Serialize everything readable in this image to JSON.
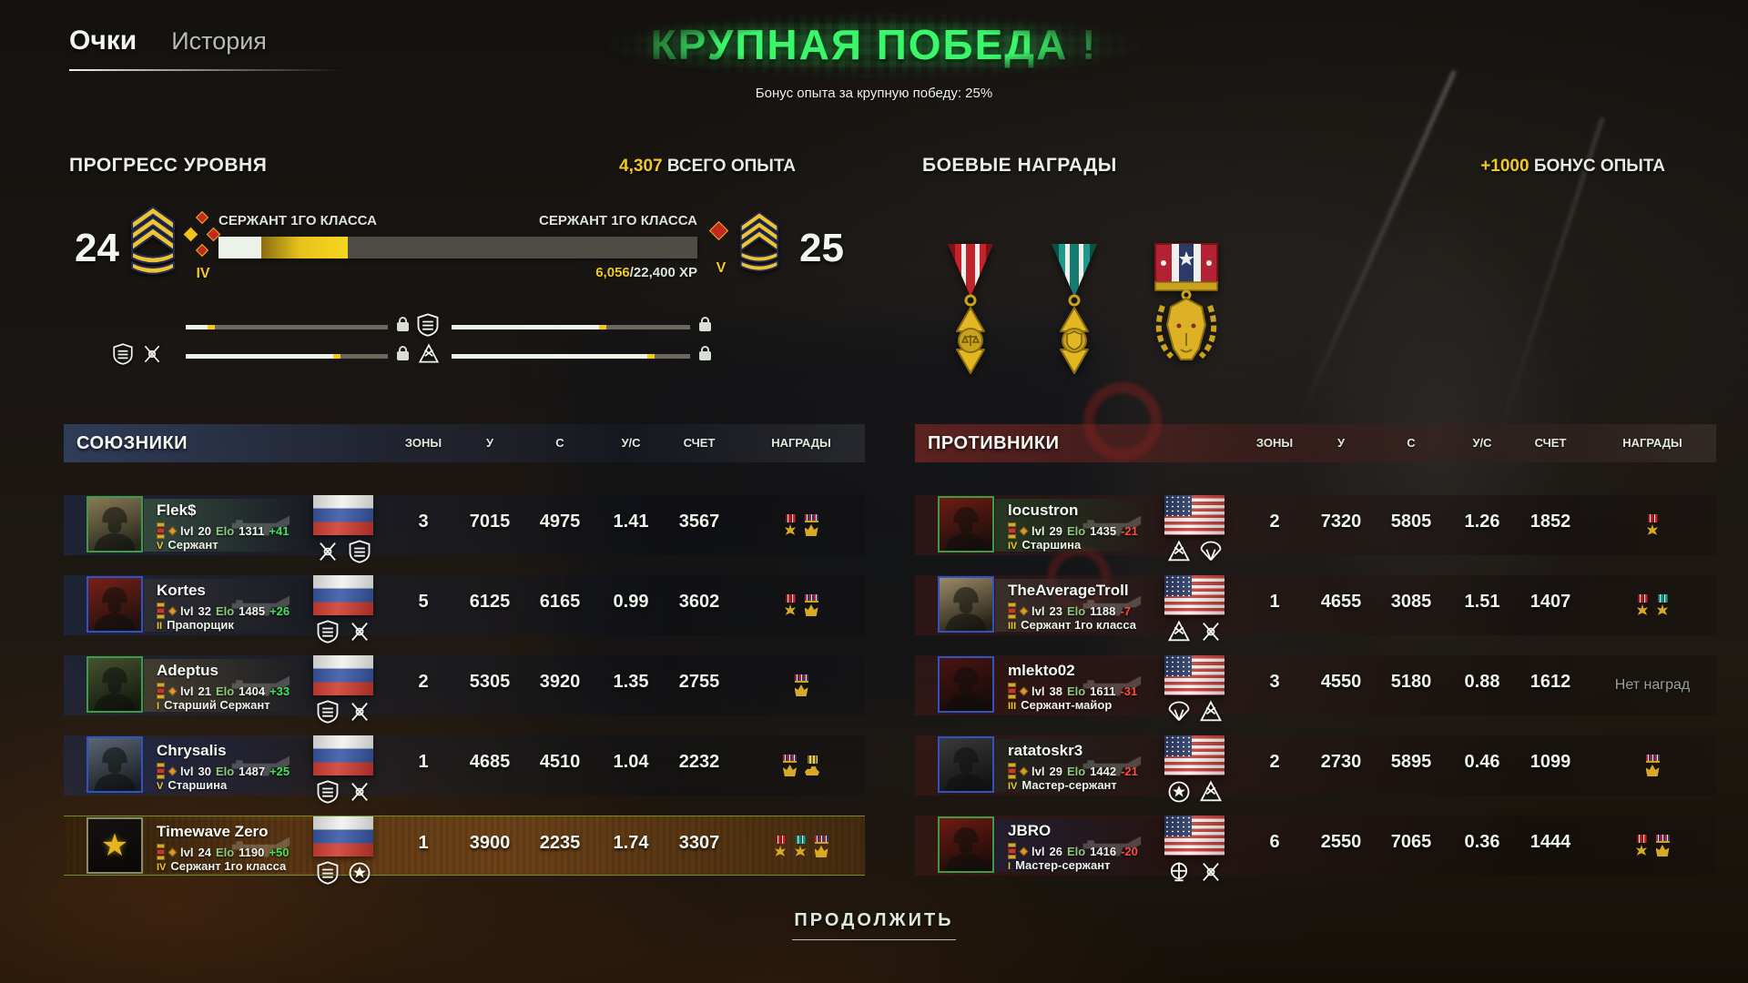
{
  "accent": {
    "green": "#3bf56a",
    "yellow": "#f0c929",
    "positive": "#43e25b",
    "negative": "#ff4a3c"
  },
  "tabs": [
    {
      "label": "Очки",
      "active": true
    },
    {
      "label": "История",
      "active": false
    }
  ],
  "victory": {
    "title": "КРУПНАЯ ПОБЕДА !",
    "subtitle": "Бонус опыта за крупную победу: 25%"
  },
  "labels": {
    "lvl": "lvl",
    "elo": "Elo"
  },
  "level_progress": {
    "section_title": "ПРОГРЕСС УРОВНЯ",
    "total_xp": "4,307",
    "total_xp_label": "ВСЕГО ОПЫТА",
    "current_level": "24",
    "next_level": "25",
    "current_tier": "IV",
    "next_tier": "V",
    "rank_current": "СЕРЖАНТ 1ГО КЛАССА",
    "rank_next": "СЕРЖАНТ 1ГО КЛАССА",
    "xp_current": "6,056",
    "xp_required": "/22,400 XP",
    "bar": {
      "white_pct": 9,
      "yellow_pct": 18
    },
    "weapon_bars": [
      {
        "icon": "flag-russia",
        "fill_pct": 11
      },
      {
        "icon": "vehicle-badge",
        "fill_pct": 62
      },
      {
        "icon": "vehicle-badge tank-badge",
        "fill_pct": 73
      },
      {
        "icon": "tank-badge",
        "fill_pct": 82
      }
    ]
  },
  "battle_rewards": {
    "section_title": "БОЕВЫЕ НАГРАДЫ",
    "bonus": "+1000",
    "bonus_label": "БОНУС ОПЫТА",
    "medals": [
      {
        "name": "scales-star-medal",
        "ribbon": "red"
      },
      {
        "name": "shield-star-medal",
        "ribbon": "teal"
      },
      {
        "name": "dog-wreath-medal",
        "ribbon": "tricolor"
      }
    ]
  },
  "scoreboard": {
    "columns": [
      "ЗОНЫ",
      "У",
      "С",
      "У/С",
      "СЧЕТ",
      "НАГРАДЫ"
    ],
    "no_awards_text": "Нет наград",
    "allies": {
      "title": "СОЮЗНИКИ",
      "players": [
        {
          "name": "Flek$",
          "lvl": "20",
          "elo": "1311",
          "delta": "+41",
          "tier": "V",
          "rank": "Сержант",
          "flag": "ru",
          "zones": "3",
          "kills": "7015",
          "deaths": "4975",
          "kd": "1.41",
          "score": "3567",
          "awards": [
            "red",
            "tricolor"
          ],
          "avatar": {
            "border": "#3f9b43",
            "c1": "#8a7a55",
            "c2": "#26261e"
          },
          "banner": "rgba(74,112,74,0.50)",
          "badges": [
            "b-x",
            "b-shield"
          ]
        },
        {
          "name": "Kortes",
          "lvl": "32",
          "elo": "1485",
          "delta": "+26",
          "tier": "II",
          "rank": "Прапорщик",
          "flag": "ru",
          "zones": "5",
          "kills": "6125",
          "deaths": "6165",
          "kd": "0.99",
          "score": "3602",
          "awards": [
            "red",
            "tricolor"
          ],
          "avatar": {
            "border": "#2f52c4",
            "c1": "#7a1f18",
            "c2": "#1d120e"
          },
          "banner": "rgba(62,58,52,0.50)",
          "badges": [
            "b-shield",
            "b-x"
          ]
        },
        {
          "name": "Adeptus",
          "lvl": "21",
          "elo": "1404",
          "delta": "+33",
          "tier": "I",
          "rank": "Старший Сержант",
          "flag": "ru",
          "zones": "2",
          "kills": "5305",
          "deaths": "3920",
          "kd": "1.35",
          "score": "2755",
          "awards": [
            "tricolor"
          ],
          "avatar": {
            "border": "#3f9b43",
            "c1": "#45522f",
            "c2": "#131a0f"
          },
          "banner": "rgba(118,100,44,0.40)",
          "badges": [
            "b-shield",
            "b-x"
          ]
        },
        {
          "name": "Chrysalis",
          "lvl": "30",
          "elo": "1487",
          "delta": "+25",
          "tier": "V",
          "rank": "Старшина",
          "flag": "ru",
          "zones": "1",
          "kills": "4685",
          "deaths": "4510",
          "kd": "1.04",
          "score": "2232",
          "awards": [
            "tricolor",
            "vehicle"
          ],
          "avatar": {
            "border": "#2f52c4",
            "c1": "#5c6673",
            "c2": "#181e24"
          },
          "banner": "rgba(32,42,82,0.50)",
          "badges": [
            "b-shield",
            "b-x"
          ]
        },
        {
          "name": "Timewave Zero",
          "lvl": "24",
          "elo": "1190",
          "delta": "+50",
          "tier": "IV",
          "rank": "Сержант 1го класса",
          "flag": "ru",
          "zones": "1",
          "kills": "3900",
          "deaths": "2235",
          "kd": "1.74",
          "score": "3307",
          "awards": [
            "red",
            "teal",
            "tricolor"
          ],
          "highlight": true,
          "avatar": {
            "border": "#8a8a6a",
            "c1": "#141210",
            "c2": "#0a0908",
            "emblem": true
          },
          "banner": "rgba(30,24,10,0.25)",
          "badges": [
            "b-shield",
            "b-round"
          ]
        }
      ]
    },
    "enemies": {
      "title": "ПРОТИВНИКИ",
      "players": [
        {
          "name": "locustron",
          "lvl": "29",
          "elo": "1435",
          "delta": "-21",
          "tier": "IV",
          "rank": "Старшина",
          "flag": "us",
          "zones": "2",
          "kills": "7320",
          "deaths": "5805",
          "kd": "1.26",
          "score": "1852",
          "awards": [
            "red"
          ],
          "avatar": {
            "border": "#3f9b43",
            "c1": "#6e1c14",
            "c2": "#190e0b"
          },
          "banner": "rgba(34,84,44,0.55)",
          "badges": [
            "b-tri",
            "b-para"
          ]
        },
        {
          "name": "TheAverageTroll",
          "lvl": "23",
          "elo": "1188",
          "delta": "-7",
          "tier": "III",
          "rank": "Сержант 1го класса",
          "flag": "us",
          "zones": "1",
          "kills": "4655",
          "deaths": "3085",
          "kd": "1.51",
          "score": "1407",
          "awards": [
            "red",
            "teal"
          ],
          "avatar": {
            "border": "#2f52c4",
            "c1": "#9a8a68",
            "c2": "#262014"
          },
          "banner": "rgba(72,72,62,0.50)",
          "badges": [
            "b-tri",
            "b-x"
          ]
        },
        {
          "name": "mlekto02",
          "lvl": "38",
          "elo": "1611",
          "delta": "-31",
          "tier": "III",
          "rank": "Сержант-майор",
          "flag": "us",
          "zones": "3",
          "kills": "4550",
          "deaths": "5180",
          "kd": "0.88",
          "score": "1612",
          "awards": [],
          "avatar": {
            "border": "#2f52c4",
            "c1": "#4a1410",
            "c2": "#150b09"
          },
          "banner": "rgba(52,22,16,0.50)",
          "badges": [
            "b-para",
            "b-tri"
          ]
        },
        {
          "name": "ratatoskr3",
          "lvl": "29",
          "elo": "1442",
          "delta": "-21",
          "tier": "IV",
          "rank": "Мастер-сержант",
          "flag": "us",
          "zones": "2",
          "kills": "2730",
          "deaths": "5895",
          "kd": "0.46",
          "score": "1099",
          "awards": [
            "tricolor"
          ],
          "avatar": {
            "border": "#2f52c4",
            "c1": "#3a3a3a",
            "c2": "#121212"
          },
          "banner": "rgba(26,46,42,0.55)",
          "badges": [
            "b-round",
            "b-tri"
          ]
        },
        {
          "name": "JBRO",
          "lvl": "26",
          "elo": "1416",
          "delta": "-20",
          "tier": "I",
          "rank": "Мастер-сержант",
          "flag": "us",
          "zones": "6",
          "kills": "2550",
          "deaths": "7065",
          "kd": "0.36",
          "score": "1444",
          "awards": [
            "red",
            "tricolor"
          ],
          "avatar": {
            "border": "#3f9b43",
            "c1": "#701a12",
            "c2": "#170c09"
          },
          "banner": "rgba(26,36,72,0.55)",
          "badges": [
            "b-marine",
            "b-x"
          ]
        }
      ]
    }
  },
  "continue_button": {
    "label": "ПРОДОЛЖИТЬ"
  }
}
